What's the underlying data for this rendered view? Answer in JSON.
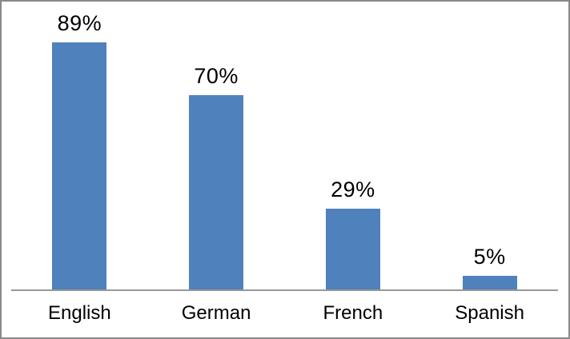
{
  "chart_data": {
    "type": "bar",
    "categories": [
      "English",
      "German",
      "French",
      "Spanish"
    ],
    "values": [
      89,
      70,
      29,
      5
    ],
    "data_labels": [
      "89%",
      "70%",
      "29%",
      "5%"
    ],
    "title": "",
    "xlabel": "",
    "ylabel": "",
    "ylim": [
      0,
      100
    ],
    "grid": false,
    "legend": false,
    "colors": {
      "bar_fill": "#4F81BD",
      "axis_line": "#989898",
      "chart_border": "#898989",
      "label_text": "#000000",
      "background": "#FFFFFF"
    }
  }
}
